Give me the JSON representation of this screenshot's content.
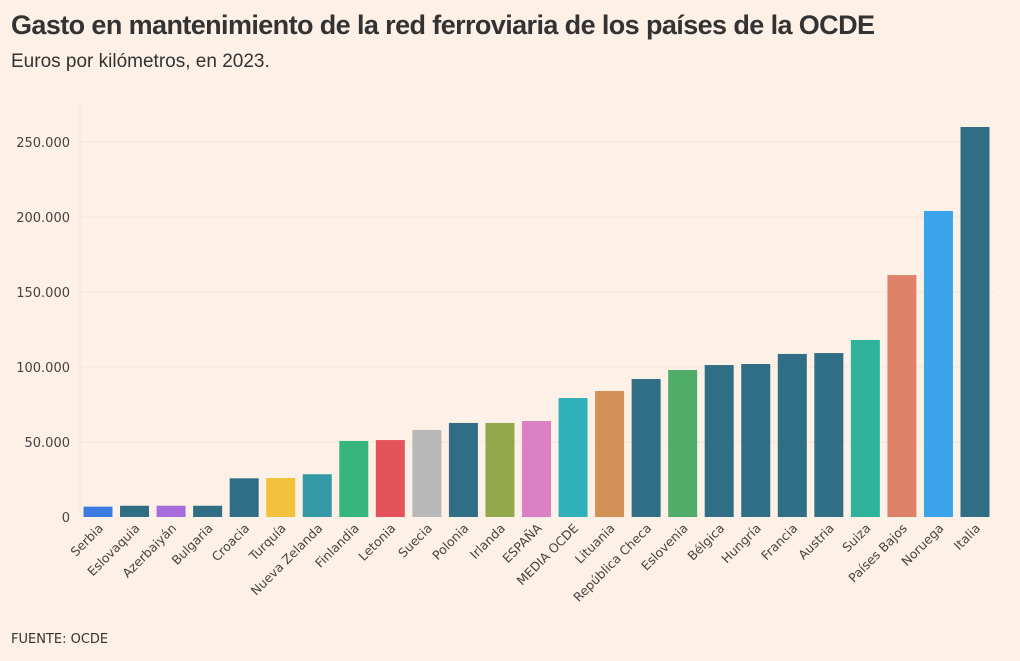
{
  "chart_data": {
    "type": "bar",
    "title": "Gasto en mantenimiento de la red ferroviaria de los países de la OCDE",
    "subtitle": "Euros por kilómetros, en 2023.",
    "source": "FUENTE: OCDE",
    "xlabel": "",
    "ylabel": "",
    "ylim": [
      0,
      260000
    ],
    "yticks": [
      0,
      50000,
      100000,
      150000,
      200000,
      250000
    ],
    "ytick_labels": [
      "0",
      "50.000",
      "100.000",
      "150.000",
      "200.000",
      "250.000"
    ],
    "grid": true,
    "categories": [
      "Serbia",
      "Eslovaquia",
      "Azerbaiyán",
      "Bulgaria",
      "Croacia",
      "Turquía",
      "Nueva Zelanda",
      "Finlandia",
      "Letonia",
      "Suecia",
      "Polonia",
      "Irlanda",
      "ESPAÑA",
      "MEDIA OCDE",
      "Lituania",
      "República Checa",
      "Eslovenia",
      "Bélgica",
      "Hungría",
      "Francia",
      "Austria",
      "Suiza",
      "Países Bajos",
      "Noruega",
      "Italia"
    ],
    "values": [
      6900,
      7500,
      7500,
      7500,
      25800,
      26000,
      28500,
      50700,
      51300,
      58000,
      62700,
      62700,
      64000,
      79300,
      84000,
      92000,
      98000,
      101300,
      102000,
      108700,
      109300,
      118000,
      161300,
      204000,
      260000
    ],
    "colors": [
      "#3d7be0",
      "#2f6e84",
      "#a86ddd",
      "#2f6e84",
      "#2f6e84",
      "#f3c23c",
      "#3498a5",
      "#37b67b",
      "#e5535a",
      "#b8b8b8",
      "#2f6e84",
      "#93a84a",
      "#db80c3",
      "#30b1b9",
      "#d28f56",
      "#2f6e84",
      "#4fac69",
      "#2f6e84",
      "#2f6e84",
      "#2f6e84",
      "#2f6e84",
      "#2fb29b",
      "#df826a",
      "#3aa4ec",
      "#2f6e84"
    ]
  }
}
